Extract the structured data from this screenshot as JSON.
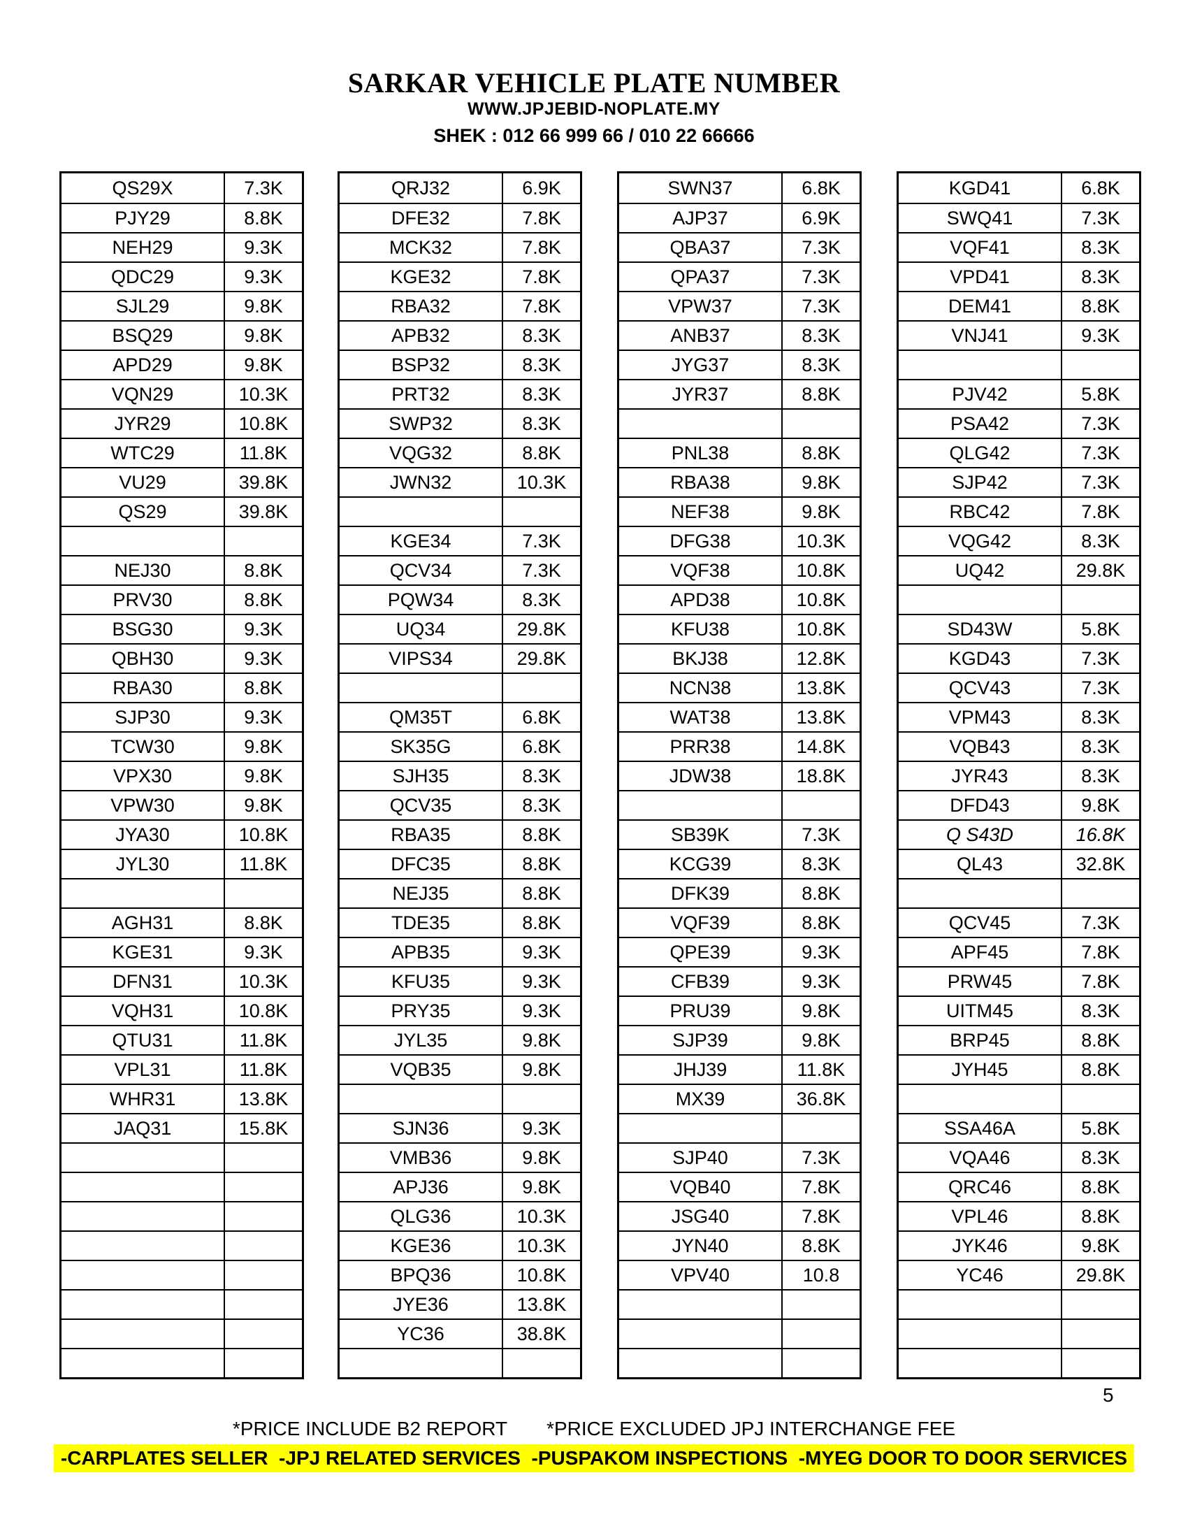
{
  "header": {
    "title": "SARKAR VEHICLE PLATE NUMBER",
    "website": "WWW.JPJEBID-NOPLATE.MY",
    "contact": "SHEK : 012 66 999 66 / 010 22 66666"
  },
  "page_number": "5",
  "footer": {
    "note1": "*PRICE INCLUDE B2 REPORT",
    "note2": "*PRICE EXCLUDED JPJ INTERCHANGE FEE",
    "services": "-CARPLATES SELLER  -JPJ RELATED SERVICES  -PUSPAKOM INSPECTIONS  -MYEG DOOR TO DOOR SERVICES"
  },
  "accent_colors": {
    "highlight": "#ffff00",
    "text": "#000000",
    "background": "#ffffff"
  },
  "columns": [
    {
      "rows": [
        {
          "plate": "QS29X",
          "price": "7.3K"
        },
        {
          "plate": "PJY29",
          "price": "8.8K"
        },
        {
          "plate": "NEH29",
          "price": "9.3K"
        },
        {
          "plate": "QDC29",
          "price": "9.3K"
        },
        {
          "plate": "SJL29",
          "price": "9.8K"
        },
        {
          "plate": "BSQ29",
          "price": "9.8K"
        },
        {
          "plate": "APD29",
          "price": "9.8K"
        },
        {
          "plate": "VQN29",
          "price": "10.3K"
        },
        {
          "plate": "JYR29",
          "price": "10.8K"
        },
        {
          "plate": "WTC29",
          "price": "11.8K"
        },
        {
          "plate": "VU29",
          "price": "39.8K"
        },
        {
          "plate": "QS29",
          "price": "39.8K"
        },
        {
          "plate": "",
          "price": ""
        },
        {
          "plate": "NEJ30",
          "price": "8.8K"
        },
        {
          "plate": "PRV30",
          "price": "8.8K"
        },
        {
          "plate": "BSG30",
          "price": "9.3K"
        },
        {
          "plate": "QBH30",
          "price": "9.3K"
        },
        {
          "plate": "RBA30",
          "price": "8.8K"
        },
        {
          "plate": "SJP30",
          "price": "9.3K"
        },
        {
          "plate": "TCW30",
          "price": "9.8K"
        },
        {
          "plate": "VPX30",
          "price": "9.8K"
        },
        {
          "plate": "VPW30",
          "price": "9.8K"
        },
        {
          "plate": "JYA30",
          "price": "10.8K"
        },
        {
          "plate": "JYL30",
          "price": "11.8K"
        },
        {
          "plate": "",
          "price": ""
        },
        {
          "plate": "AGH31",
          "price": "8.8K"
        },
        {
          "plate": "KGE31",
          "price": "9.3K"
        },
        {
          "plate": "DFN31",
          "price": "10.3K"
        },
        {
          "plate": "VQH31",
          "price": "10.8K"
        },
        {
          "plate": "QTU31",
          "price": "11.8K"
        },
        {
          "plate": "VPL31",
          "price": "11.8K"
        },
        {
          "plate": "WHR31",
          "price": "13.8K"
        },
        {
          "plate": "JAQ31",
          "price": "15.8K"
        },
        {
          "plate": "",
          "price": ""
        },
        {
          "plate": "",
          "price": ""
        },
        {
          "plate": "",
          "price": ""
        },
        {
          "plate": "",
          "price": ""
        },
        {
          "plate": "",
          "price": ""
        },
        {
          "plate": "",
          "price": ""
        },
        {
          "plate": "",
          "price": ""
        },
        {
          "plate": "",
          "price": ""
        }
      ]
    },
    {
      "rows": [
        {
          "plate": "QRJ32",
          "price": "6.9K"
        },
        {
          "plate": "DFE32",
          "price": "7.8K"
        },
        {
          "plate": "MCK32",
          "price": "7.8K"
        },
        {
          "plate": "KGE32",
          "price": "7.8K"
        },
        {
          "plate": "RBA32",
          "price": "7.8K"
        },
        {
          "plate": "APB32",
          "price": "8.3K"
        },
        {
          "plate": "BSP32",
          "price": "8.3K"
        },
        {
          "plate": "PRT32",
          "price": "8.3K"
        },
        {
          "plate": "SWP32",
          "price": "8.3K"
        },
        {
          "plate": "VQG32",
          "price": "8.8K"
        },
        {
          "plate": "JWN32",
          "price": "10.3K"
        },
        {
          "plate": "",
          "price": ""
        },
        {
          "plate": "KGE34",
          "price": "7.3K"
        },
        {
          "plate": "QCV34",
          "price": "7.3K"
        },
        {
          "plate": "PQW34",
          "price": "8.3K"
        },
        {
          "plate": "UQ34",
          "price": "29.8K"
        },
        {
          "plate": "VIPS34",
          "price": "29.8K"
        },
        {
          "plate": "",
          "price": ""
        },
        {
          "plate": "QM35T",
          "price": "6.8K"
        },
        {
          "plate": "SK35G",
          "price": "6.8K"
        },
        {
          "plate": "SJH35",
          "price": "8.3K"
        },
        {
          "plate": "QCV35",
          "price": "8.3K"
        },
        {
          "plate": "RBA35",
          "price": "8.8K"
        },
        {
          "plate": "DFC35",
          "price": "8.8K"
        },
        {
          "plate": "NEJ35",
          "price": "8.8K"
        },
        {
          "plate": "TDE35",
          "price": "8.8K"
        },
        {
          "plate": "APB35",
          "price": "9.3K"
        },
        {
          "plate": "KFU35",
          "price": "9.3K"
        },
        {
          "plate": "PRY35",
          "price": "9.3K"
        },
        {
          "plate": "JYL35",
          "price": "9.8K"
        },
        {
          "plate": "VQB35",
          "price": "9.8K"
        },
        {
          "plate": "",
          "price": ""
        },
        {
          "plate": "SJN36",
          "price": "9.3K"
        },
        {
          "plate": "VMB36",
          "price": "9.8K"
        },
        {
          "plate": "APJ36",
          "price": "9.8K"
        },
        {
          "plate": "QLG36",
          "price": "10.3K"
        },
        {
          "plate": "KGE36",
          "price": "10.3K"
        },
        {
          "plate": "BPQ36",
          "price": "10.8K"
        },
        {
          "plate": "JYE36",
          "price": "13.8K"
        },
        {
          "plate": "YC36",
          "price": "38.8K"
        },
        {
          "plate": "",
          "price": ""
        }
      ]
    },
    {
      "rows": [
        {
          "plate": "SWN37",
          "price": "6.8K"
        },
        {
          "plate": "AJP37",
          "price": "6.9K"
        },
        {
          "plate": "QBA37",
          "price": "7.3K"
        },
        {
          "plate": "QPA37",
          "price": "7.3K"
        },
        {
          "plate": "VPW37",
          "price": "7.3K"
        },
        {
          "plate": "ANB37",
          "price": "8.3K"
        },
        {
          "plate": "JYG37",
          "price": "8.3K"
        },
        {
          "plate": "JYR37",
          "price": "8.8K"
        },
        {
          "plate": "",
          "price": ""
        },
        {
          "plate": "PNL38",
          "price": "8.8K"
        },
        {
          "plate": "RBA38",
          "price": "9.8K"
        },
        {
          "plate": "NEF38",
          "price": "9.8K"
        },
        {
          "plate": "DFG38",
          "price": "10.3K"
        },
        {
          "plate": "VQF38",
          "price": "10.8K"
        },
        {
          "plate": "APD38",
          "price": "10.8K"
        },
        {
          "plate": "KFU38",
          "price": "10.8K"
        },
        {
          "plate": "BKJ38",
          "price": "12.8K"
        },
        {
          "plate": "NCN38",
          "price": "13.8K"
        },
        {
          "plate": "WAT38",
          "price": "13.8K"
        },
        {
          "plate": "PRR38",
          "price": "14.8K"
        },
        {
          "plate": "JDW38",
          "price": "18.8K"
        },
        {
          "plate": "",
          "price": ""
        },
        {
          "plate": "SB39K",
          "price": "7.3K"
        },
        {
          "plate": "KCG39",
          "price": "8.3K"
        },
        {
          "plate": "DFK39",
          "price": "8.8K"
        },
        {
          "plate": "VQF39",
          "price": "8.8K"
        },
        {
          "plate": "QPE39",
          "price": "9.3K"
        },
        {
          "plate": "CFB39",
          "price": "9.3K"
        },
        {
          "plate": "PRU39",
          "price": "9.8K"
        },
        {
          "plate": "SJP39",
          "price": "9.8K"
        },
        {
          "plate": "JHJ39",
          "price": "11.8K"
        },
        {
          "plate": "MX39",
          "price": "36.8K"
        },
        {
          "plate": "",
          "price": ""
        },
        {
          "plate": "SJP40",
          "price": "7.3K"
        },
        {
          "plate": "VQB40",
          "price": "7.8K"
        },
        {
          "plate": "JSG40",
          "price": "7.8K"
        },
        {
          "plate": "JYN40",
          "price": "8.8K"
        },
        {
          "plate": "VPV40",
          "price": "10.8"
        },
        {
          "plate": "",
          "price": ""
        },
        {
          "plate": "",
          "price": ""
        },
        {
          "plate": "",
          "price": ""
        }
      ]
    },
    {
      "rows": [
        {
          "plate": "KGD41",
          "price": "6.8K"
        },
        {
          "plate": "SWQ41",
          "price": "7.3K"
        },
        {
          "plate": "VQF41",
          "price": "8.3K"
        },
        {
          "plate": "VPD41",
          "price": "8.3K"
        },
        {
          "plate": "DEM41",
          "price": "8.8K"
        },
        {
          "plate": "VNJ41",
          "price": "9.3K"
        },
        {
          "plate": "",
          "price": ""
        },
        {
          "plate": "PJV42",
          "price": "5.8K"
        },
        {
          "plate": "PSA42",
          "price": "7.3K"
        },
        {
          "plate": "QLG42",
          "price": "7.3K"
        },
        {
          "plate": "SJP42",
          "price": "7.3K"
        },
        {
          "plate": "RBC42",
          "price": "7.8K"
        },
        {
          "plate": "VQG42",
          "price": "8.3K"
        },
        {
          "plate": "UQ42",
          "price": "29.8K"
        },
        {
          "plate": "",
          "price": ""
        },
        {
          "plate": "SD43W",
          "price": "5.8K"
        },
        {
          "plate": "KGD43",
          "price": "7.3K"
        },
        {
          "plate": "QCV43",
          "price": "7.3K"
        },
        {
          "plate": "VPM43",
          "price": "8.3K"
        },
        {
          "plate": "VQB43",
          "price": "8.3K"
        },
        {
          "plate": "JYR43",
          "price": "8.3K"
        },
        {
          "plate": "DFD43",
          "price": "9.8K"
        },
        {
          "plate": "Q S43D",
          "price": "16.8K",
          "italic": true
        },
        {
          "plate": "QL43",
          "price": "32.8K"
        },
        {
          "plate": "",
          "price": ""
        },
        {
          "plate": "QCV45",
          "price": "7.3K"
        },
        {
          "plate": "APF45",
          "price": "7.8K"
        },
        {
          "plate": "PRW45",
          "price": "7.8K"
        },
        {
          "plate": "UITM45",
          "price": "8.3K"
        },
        {
          "plate": "BRP45",
          "price": "8.8K"
        },
        {
          "plate": "JYH45",
          "price": "8.8K"
        },
        {
          "plate": "",
          "price": ""
        },
        {
          "plate": "SSA46A",
          "price": "5.8K"
        },
        {
          "plate": "VQA46",
          "price": "8.3K"
        },
        {
          "plate": "QRC46",
          "price": "8.8K"
        },
        {
          "plate": "VPL46",
          "price": "8.8K"
        },
        {
          "plate": "JYK46",
          "price": "9.8K"
        },
        {
          "plate": "YC46",
          "price": "29.8K"
        },
        {
          "plate": "",
          "price": ""
        },
        {
          "plate": "",
          "price": ""
        },
        {
          "plate": "",
          "price": ""
        }
      ]
    }
  ]
}
